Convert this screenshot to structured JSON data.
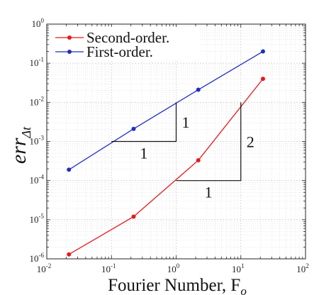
{
  "chart_data": {
    "type": "line",
    "x_scale": "log",
    "y_scale": "log",
    "xlim": [
      0.01,
      100
    ],
    "ylim": [
      1e-06,
      1
    ],
    "grid": true,
    "legend_position": "top-left",
    "xlabel": "Fourier Number, F",
    "xlabel_subscript": "o",
    "ylabel": "err",
    "ylabel_subscript": "Δt",
    "x_tick_labels": [
      {
        "base": "10",
        "exp": "-2"
      },
      {
        "base": "10",
        "exp": "-1"
      },
      {
        "base": "10",
        "exp": "0"
      },
      {
        "base": "10",
        "exp": "1"
      },
      {
        "base": "10",
        "exp": "2"
      }
    ],
    "y_tick_labels": [
      {
        "base": "10",
        "exp": "-6"
      },
      {
        "base": "10",
        "exp": "-5"
      },
      {
        "base": "10",
        "exp": "-4"
      },
      {
        "base": "10",
        "exp": "-3"
      },
      {
        "base": "10",
        "exp": "-2"
      },
      {
        "base": "10",
        "exp": "-1"
      },
      {
        "base": "10",
        "exp": "0"
      }
    ],
    "series": [
      {
        "name": "Second-order.",
        "color": "#e41a1c",
        "x": [
          0.022,
          0.22,
          2.2,
          22
        ],
        "y": [
          1.3e-06,
          1.2e-05,
          0.00033,
          0.04
        ]
      },
      {
        "name": "First-order.",
        "color": "#1f2fbf",
        "x": [
          0.022,
          0.22,
          2.2,
          22
        ],
        "y": [
          0.00019,
          0.0021,
          0.021,
          0.2
        ]
      }
    ],
    "slope_triangles": [
      {
        "corner": [
          1,
          0.001
        ],
        "left_x": 0.1,
        "top_y": 0.01,
        "run_label": "1",
        "rise_label": "1"
      },
      {
        "corner": [
          10,
          0.0001
        ],
        "left_x": 1,
        "top_y": 0.01,
        "run_label": "1",
        "rise_label": "2"
      }
    ]
  }
}
